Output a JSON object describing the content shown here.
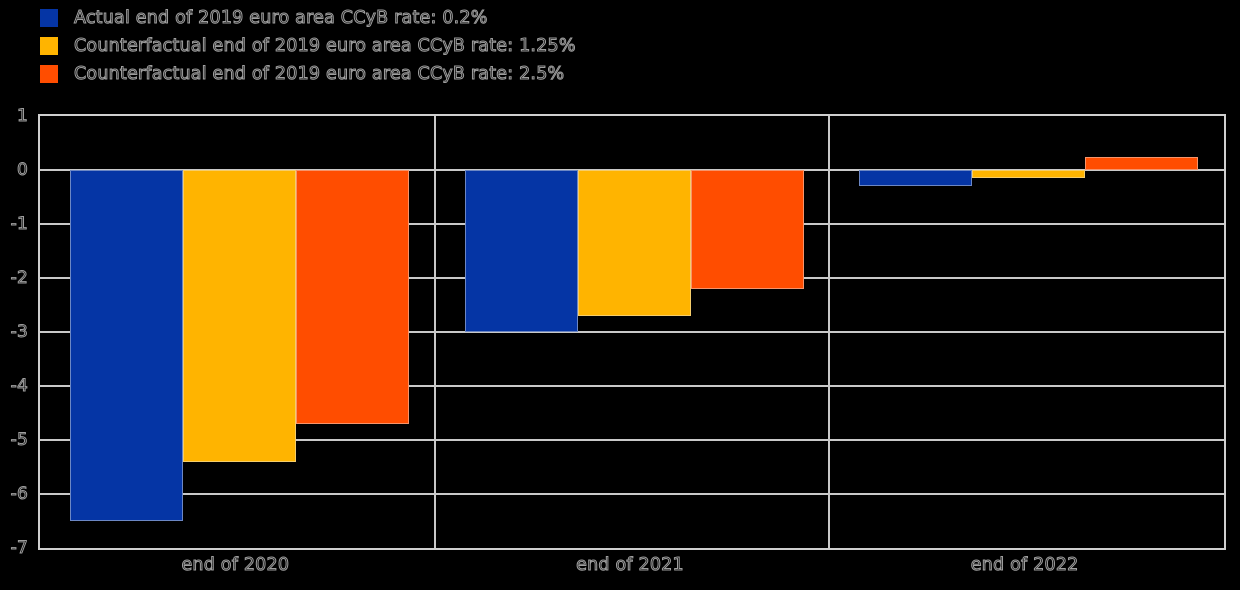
{
  "legend": {
    "items": [
      {
        "label": "Actual end of 2019 euro area CCyB rate: 0.2%",
        "color": "#0535A5"
      },
      {
        "label": "Counterfactual end of 2019 euro area CCyB rate: 1.25%",
        "color": "#FFB400"
      },
      {
        "label": "Counterfactual end of 2019 euro area CCyB rate: 2.5%",
        "color": "#FF4D00"
      }
    ]
  },
  "chart_data": {
    "type": "bar",
    "categories": [
      "end of 2020",
      "end of 2021",
      "end of 2022"
    ],
    "series": [
      {
        "name": "Actual end of 2019 euro area CCyB rate: 0.2%",
        "color": "#0535A5",
        "values": [
          -6.5,
          -3.0,
          -0.3
        ]
      },
      {
        "name": "Counterfactual end of 2019 euro area CCyB rate: 1.25%",
        "color": "#FFB400",
        "values": [
          -5.4,
          -2.7,
          -0.15
        ]
      },
      {
        "name": "Counterfactual end of 2019 euro area CCyB rate: 2.5%",
        "color": "#FF4D00",
        "values": [
          -4.7,
          -2.2,
          0.25
        ]
      }
    ],
    "ylim": [
      -7,
      1
    ],
    "ytick_step": 1,
    "grid": true,
    "legend_position": "top-left",
    "panel_layout": "three-panels-with-dividers"
  },
  "style": {
    "background": "#000000",
    "grid_color": "#c9c9c9",
    "border_color": "#cfcfcf",
    "text_outline_color": "#9f9f9f"
  }
}
